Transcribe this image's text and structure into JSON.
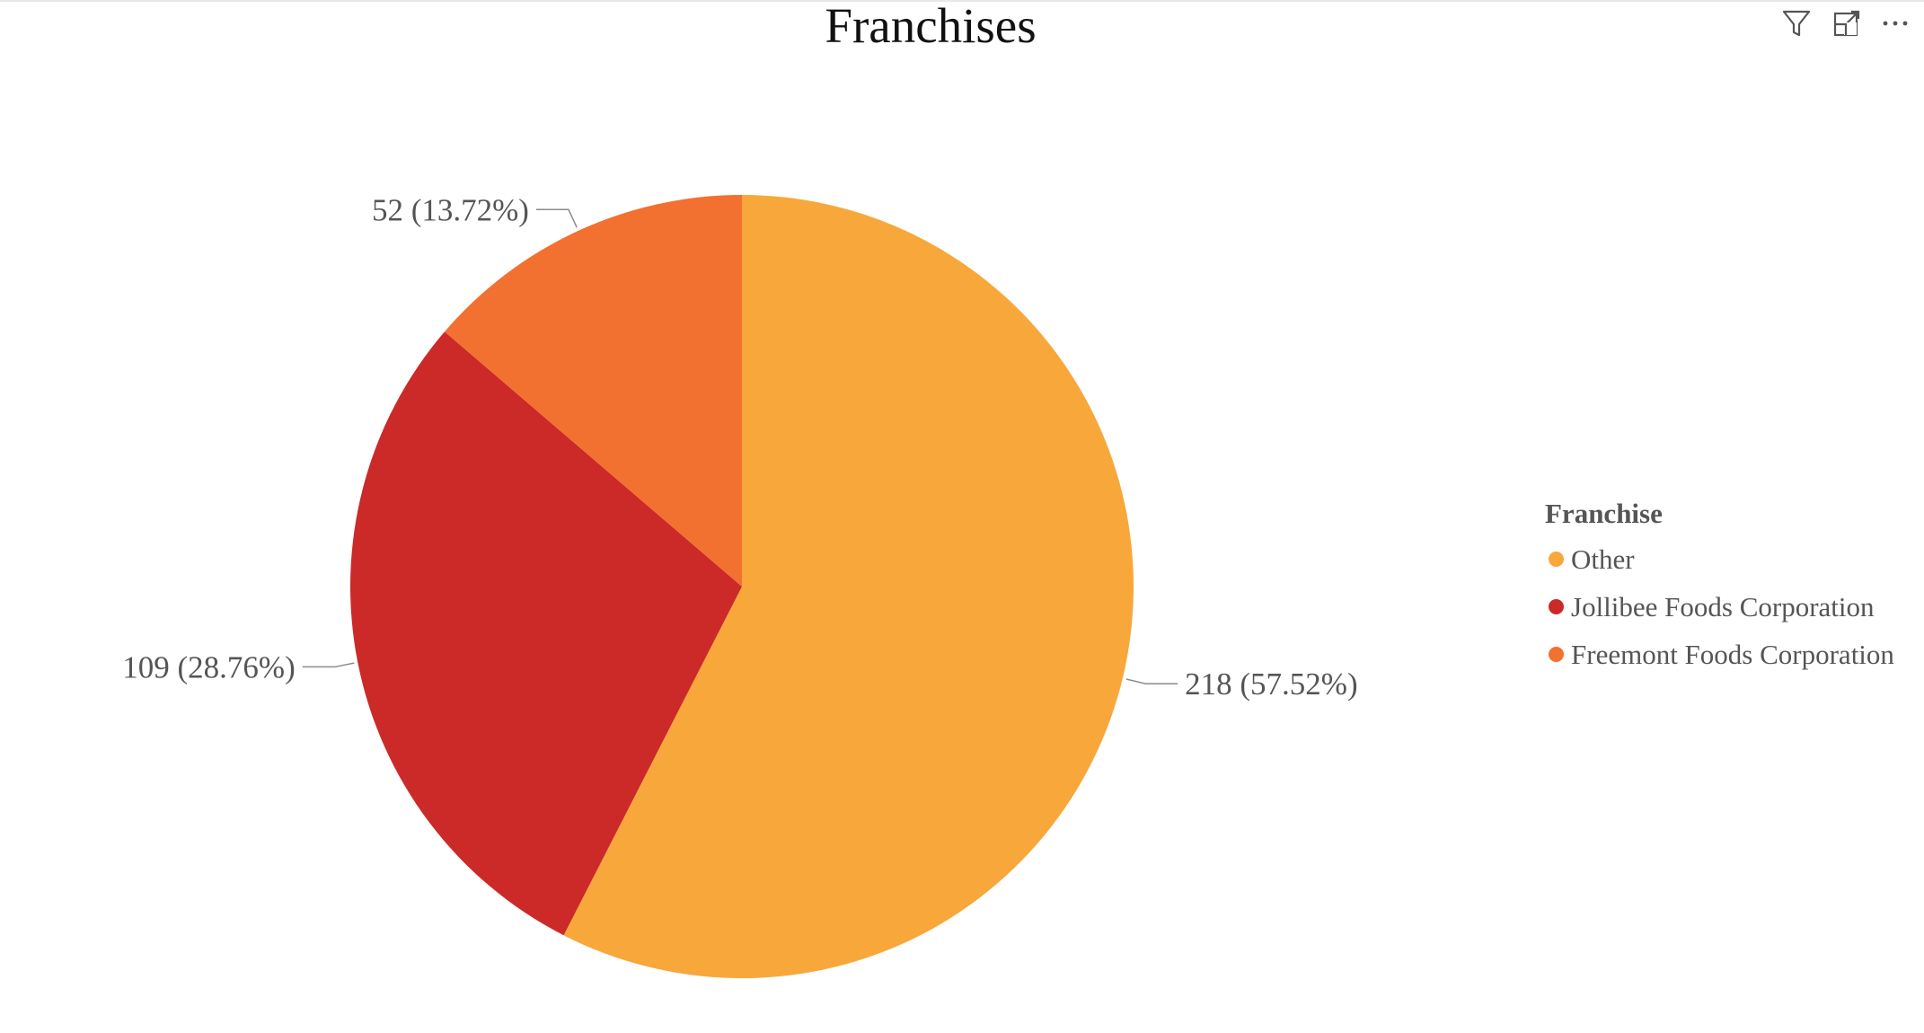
{
  "visual": {
    "title": "Franchises"
  },
  "header_icons": [
    {
      "name": "filter-icon"
    },
    {
      "name": "focus-mode-icon"
    },
    {
      "name": "more-options-icon"
    }
  ],
  "chart_data": {
    "type": "pie",
    "title": "Franchises",
    "legend_title": "Franchise",
    "legend_position": "right",
    "slices": [
      {
        "name": "Other",
        "value": 218,
        "percent": 57.52,
        "label": "218 (57.52%)",
        "color": "#F8A73B"
      },
      {
        "name": "Jollibee Foods Corporation",
        "value": 109,
        "percent": 28.76,
        "label": "109 (28.76%)",
        "color": "#CC2929"
      },
      {
        "name": "Freemont Foods Corporation",
        "value": 52,
        "percent": 13.72,
        "label": "52 (13.72%)",
        "color": "#F27030"
      }
    ]
  }
}
